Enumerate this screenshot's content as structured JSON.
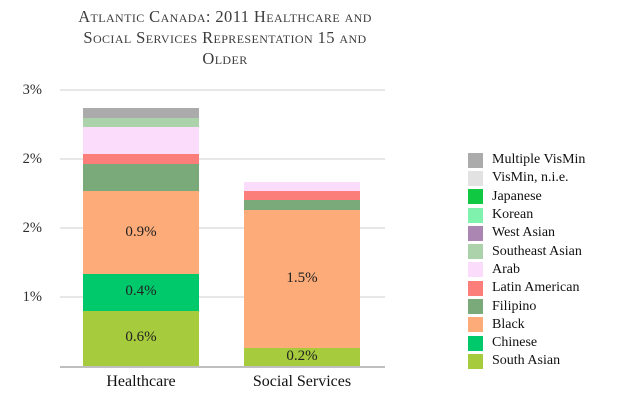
{
  "title": {
    "text": "Atlantic Canada: 2011 Healthcare and Social Services Representation 15 and Older",
    "lines": [
      "Atlantic Canada: 2011 Healthcare and",
      "Social Services Representation 15 and",
      "Older"
    ]
  },
  "chart_data": {
    "type": "bar",
    "stacked": true,
    "title": "Atlantic Canada: 2011 Healthcare and Social Services Representation 15 and Older",
    "categories": [
      "Healthcare",
      "Social Services"
    ],
    "unit": "%",
    "ylim": [
      0,
      3
    ],
    "grid": true,
    "legend_position": "right",
    "yticks": [
      {
        "value": 3.0,
        "label": "3%"
      },
      {
        "value": 2.25,
        "label": "2%"
      },
      {
        "value": 1.5,
        "label": "2%"
      },
      {
        "value": 0.75,
        "label": "1%"
      }
    ],
    "series": [
      {
        "name": "South Asian",
        "color": "#a6cb3c",
        "values": [
          0.6,
          0.2
        ],
        "labels": [
          "0.6%",
          "0.2%"
        ]
      },
      {
        "name": "Chinese",
        "color": "#00c96b",
        "values": [
          0.4,
          0
        ],
        "labels": [
          "0.4%",
          ""
        ]
      },
      {
        "name": "Black",
        "color": "#fcab79",
        "values": [
          0.9,
          1.5
        ],
        "labels": [
          "0.9%",
          "1.5%"
        ]
      },
      {
        "name": "Filipino",
        "color": "#7aa97a",
        "values": [
          0.3,
          0.1
        ],
        "labels": [
          "",
          ""
        ]
      },
      {
        "name": "Latin American",
        "color": "#fb7e7b",
        "values": [
          0.1,
          0.1
        ],
        "labels": [
          "",
          ""
        ]
      },
      {
        "name": "Arab",
        "color": "#fbdcfb",
        "values": [
          0.3,
          0.1
        ],
        "labels": [
          "",
          ""
        ]
      },
      {
        "name": "Southeast Asian",
        "color": "#abd2ab",
        "values": [
          0.1,
          0
        ],
        "labels": [
          "",
          ""
        ]
      },
      {
        "name": "West Asian",
        "color": "#ac86b2",
        "values": [
          0,
          0
        ],
        "labels": [
          "",
          ""
        ]
      },
      {
        "name": "Korean",
        "color": "#7ff3ad",
        "values": [
          0,
          0
        ],
        "labels": [
          "",
          ""
        ]
      },
      {
        "name": "Japanese",
        "color": "#10c841",
        "values": [
          0,
          0
        ],
        "labels": [
          "",
          ""
        ]
      },
      {
        "name": "VisMin, n.i.e.",
        "color": "#e2e2e2",
        "values": [
          0,
          0
        ],
        "labels": [
          "",
          ""
        ]
      },
      {
        "name": "Multiple VisMin",
        "color": "#ababab",
        "values": [
          0.1,
          0
        ],
        "labels": [
          "",
          ""
        ]
      }
    ],
    "legend_order": [
      "Multiple VisMin",
      "VisMin, n.i.e.",
      "Japanese",
      "Korean",
      "West Asian",
      "Southeast Asian",
      "Arab",
      "Latin American",
      "Filipino",
      "Black",
      "Chinese",
      "South Asian"
    ]
  }
}
